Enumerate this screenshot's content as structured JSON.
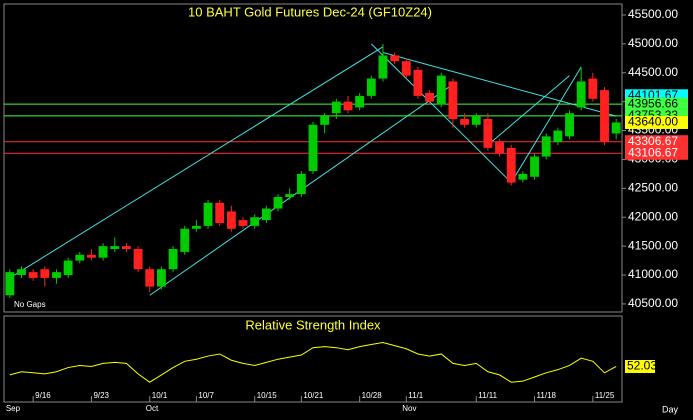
{
  "chart_data": {
    "type": "candlestick",
    "title": "10 BAHT Gold Futures Dec-24 (GF10Z24)",
    "note": "No Gaps",
    "x_unit": "Day",
    "up_color": "#00cc00",
    "down_color": "#ff2020",
    "categories": [
      null,
      null,
      "9/16",
      null,
      null,
      null,
      null,
      "9/23",
      null,
      null,
      null,
      null,
      "10/1",
      null,
      null,
      null,
      "10/7",
      null,
      null,
      null,
      null,
      "10/15",
      null,
      null,
      null,
      "10/21",
      null,
      null,
      null,
      null,
      "10/28",
      null,
      null,
      null,
      "11/1",
      null,
      null,
      null,
      null,
      null,
      "11/11",
      null,
      null,
      null,
      null,
      "11/18",
      null,
      null,
      null,
      null,
      "11/25",
      null,
      null
    ],
    "months": [
      "Sep",
      null,
      null,
      null,
      null,
      null,
      null,
      null,
      null,
      null,
      null,
      null,
      "Oct",
      null,
      null,
      null,
      null,
      null,
      null,
      null,
      null,
      null,
      null,
      null,
      null,
      null,
      null,
      null,
      null,
      null,
      null,
      null,
      null,
      null,
      "Nov",
      null,
      null,
      null,
      null,
      null,
      null,
      null,
      null,
      null,
      null,
      null,
      null,
      null,
      null,
      null,
      null,
      null,
      null
    ],
    "open": [
      40650,
      41000,
      41050,
      41100,
      40950,
      41000,
      41250,
      41350,
      41300,
      41450,
      41500,
      41450,
      41100,
      40800,
      41100,
      41400,
      41800,
      41850,
      42250,
      42100,
      41950,
      41850,
      41950,
      42150,
      42350,
      42400,
      42800,
      43600,
      43800,
      44000,
      43900,
      44100,
      44400,
      44800,
      44700,
      44550,
      44150,
      43950,
      44350,
      43700,
      43600,
      43700,
      43300,
      43200,
      42650,
      42700,
      43050,
      43300,
      43400,
      43900,
      44400,
      44200,
      43450
    ],
    "high": [
      41100,
      41150,
      41100,
      41150,
      41100,
      41300,
      41400,
      41450,
      41550,
      41650,
      41550,
      41500,
      41150,
      41150,
      41500,
      41850,
      41950,
      42300,
      42300,
      42200,
      42000,
      42050,
      42200,
      42400,
      42500,
      42800,
      43650,
      43800,
      44050,
      44100,
      44150,
      44450,
      45000,
      44850,
      44750,
      44600,
      44200,
      44500,
      44400,
      43800,
      43800,
      43800,
      43350,
      43250,
      42800,
      43100,
      43450,
      43550,
      43850,
      44600,
      44500,
      44250,
      43700
    ],
    "low": [
      40600,
      40950,
      40900,
      40800,
      40850,
      40950,
      41200,
      41250,
      41250,
      41400,
      41400,
      41050,
      40700,
      40750,
      41050,
      41350,
      41750,
      41800,
      41850,
      41750,
      41800,
      41800,
      41900,
      42100,
      42300,
      42350,
      42750,
      43450,
      43700,
      43800,
      43850,
      44050,
      44350,
      44650,
      44400,
      44050,
      43950,
      43900,
      43550,
      43550,
      43550,
      43150,
      43050,
      42550,
      42600,
      42650,
      43000,
      43250,
      43350,
      43850,
      44000,
      43250,
      43350
    ],
    "close": [
      41050,
      41100,
      40950,
      40950,
      41050,
      41250,
      41350,
      41300,
      41500,
      41500,
      41450,
      41100,
      40800,
      41100,
      41450,
      41800,
      41850,
      42250,
      41900,
      41800,
      41850,
      42000,
      42150,
      42350,
      42400,
      42750,
      43600,
      43750,
      44000,
      43850,
      44100,
      44400,
      44800,
      44700,
      44450,
      44100,
      44000,
      44450,
      43700,
      43600,
      43750,
      43200,
      43100,
      42600,
      42750,
      43050,
      43400,
      43500,
      43800,
      44350,
      44050,
      43300,
      43640
    ],
    "ylim": [
      40360,
      45690
    ],
    "yticks": [
      {
        "value": 40500,
        "label": "40500.00"
      },
      {
        "value": 41000,
        "label": "41000.00"
      },
      {
        "value": 41500,
        "label": "41500.00"
      },
      {
        "value": 42000,
        "label": "42000.00"
      },
      {
        "value": 42500,
        "label": "42500.00"
      },
      {
        "value": 43000,
        "label": "43000.00"
      },
      {
        "value": 43500,
        "label": "43500.00"
      },
      {
        "value": 44000,
        "label": "44000.00"
      },
      {
        "value": 44500,
        "label": "44500.00"
      },
      {
        "value": 45000,
        "label": "45000.00"
      },
      {
        "value": 45500,
        "label": "45500.00"
      }
    ],
    "levels": [
      {
        "value": 44101.67,
        "color": "#00ffff",
        "line": false
      },
      {
        "value": 43956.66,
        "color": "#40ff40",
        "line": true
      },
      {
        "value": 43753.33,
        "color": "#40ff40",
        "line": true
      },
      {
        "value": 43640,
        "label": "43640.00",
        "color": "#ffff00",
        "line": false
      },
      {
        "value": 43306.67,
        "color": "#ff3030",
        "line": true
      },
      {
        "value": 43106.67,
        "color": "#ff3030",
        "line": true
      }
    ],
    "trendlines": [
      {
        "x": [
          0,
          32
        ],
        "y": [
          40950,
          44950
        ]
      },
      {
        "x": [
          12,
          38
        ],
        "y": [
          40650,
          44300
        ]
      },
      {
        "x": [
          31,
          43
        ],
        "y": [
          45000,
          42600
        ]
      },
      {
        "x": [
          32,
          52
        ],
        "y": [
          44850,
          43750
        ]
      },
      {
        "x": [
          43,
          49
        ],
        "y": [
          42600,
          44600
        ]
      },
      {
        "x": [
          41,
          48
        ],
        "y": [
          43250,
          44450
        ]
      }
    ],
    "trend_color": "#40e0e0",
    "rsi": {
      "title": "Relative Strength Index",
      "color": "#ffff00",
      "ylim": [
        20,
        85
      ],
      "values": [
        44,
        47,
        46,
        45,
        47,
        51,
        53,
        52,
        55,
        56,
        55,
        45,
        37,
        44,
        51,
        57,
        59,
        62,
        64,
        58,
        55,
        53,
        56,
        59,
        61,
        63,
        70,
        71,
        70,
        68,
        71,
        73,
        75,
        72,
        69,
        64,
        62,
        64,
        55,
        53,
        55,
        47,
        44,
        37,
        38,
        42,
        46,
        49,
        53,
        60,
        57,
        46,
        52.03
      ]
    }
  }
}
